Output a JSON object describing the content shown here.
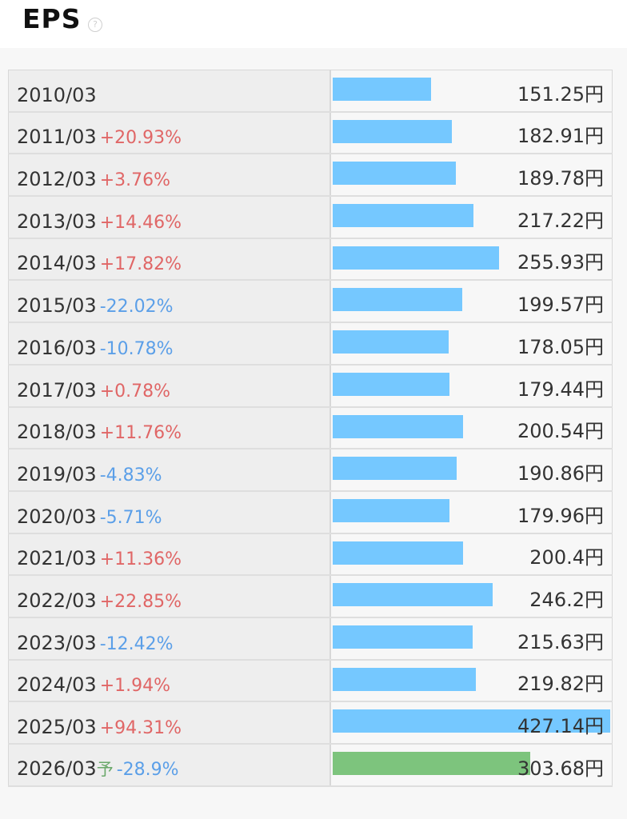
{
  "header": {
    "title": "EPS",
    "help_glyph": "?"
  },
  "chart_data": {
    "type": "bar",
    "unit": "円",
    "colors": {
      "actual": "#75c8ff",
      "forecast": "#7dc47d",
      "increase": "#e06666",
      "decrease": "#5b9fe8"
    },
    "forecast_marker": "予",
    "rows": [
      {
        "period": "2010/03",
        "change": "",
        "value": 151.25,
        "value_label": "151.25円",
        "forecast": false
      },
      {
        "period": "2011/03",
        "change": "+20.93%",
        "value": 182.91,
        "value_label": "182.91円",
        "forecast": false
      },
      {
        "period": "2012/03",
        "change": "+3.76%",
        "value": 189.78,
        "value_label": "189.78円",
        "forecast": false
      },
      {
        "period": "2013/03",
        "change": "+14.46%",
        "value": 217.22,
        "value_label": "217.22円",
        "forecast": false
      },
      {
        "period": "2014/03",
        "change": "+17.82%",
        "value": 255.93,
        "value_label": "255.93円",
        "forecast": false
      },
      {
        "period": "2015/03",
        "change": "-22.02%",
        "value": 199.57,
        "value_label": "199.57円",
        "forecast": false
      },
      {
        "period": "2016/03",
        "change": "-10.78%",
        "value": 178.05,
        "value_label": "178.05円",
        "forecast": false
      },
      {
        "period": "2017/03",
        "change": "+0.78%",
        "value": 179.44,
        "value_label": "179.44円",
        "forecast": false
      },
      {
        "period": "2018/03",
        "change": "+11.76%",
        "value": 200.54,
        "value_label": "200.54円",
        "forecast": false
      },
      {
        "period": "2019/03",
        "change": "-4.83%",
        "value": 190.86,
        "value_label": "190.86円",
        "forecast": false
      },
      {
        "period": "2020/03",
        "change": "-5.71%",
        "value": 179.96,
        "value_label": "179.96円",
        "forecast": false
      },
      {
        "period": "2021/03",
        "change": "+11.36%",
        "value": 200.4,
        "value_label": "200.4円",
        "forecast": false
      },
      {
        "period": "2022/03",
        "change": "+22.85%",
        "value": 246.2,
        "value_label": "246.2円",
        "forecast": false
      },
      {
        "period": "2023/03",
        "change": "-12.42%",
        "value": 215.63,
        "value_label": "215.63円",
        "forecast": false
      },
      {
        "period": "2024/03",
        "change": "+1.94%",
        "value": 219.82,
        "value_label": "219.82円",
        "forecast": false
      },
      {
        "period": "2025/03",
        "change": "+94.31%",
        "value": 427.14,
        "value_label": "427.14円",
        "forecast": false
      },
      {
        "period": "2026/03",
        "change": "-28.9%",
        "value": 303.68,
        "value_label": "303.68円",
        "forecast": true
      }
    ]
  }
}
